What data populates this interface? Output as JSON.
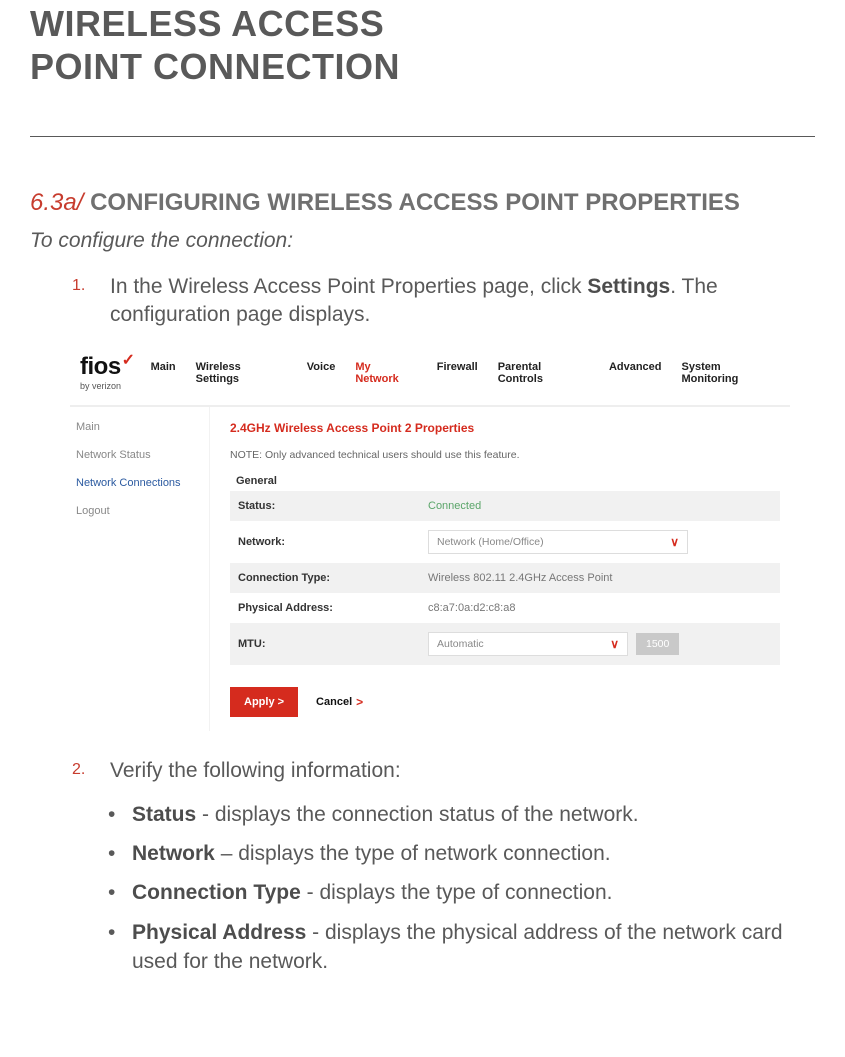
{
  "page": {
    "title_line1": "WIRELESS ACCESS",
    "title_line2": "POINT CONNECTION"
  },
  "section": {
    "number": "6.3a/",
    "heading": "CONFIGURING WIRELESS ACCESS POINT PROPERTIES",
    "intro": "To configure the connection:"
  },
  "steps": {
    "s1_num": "1.",
    "s1_a": "In the Wireless Access Point Properties page, click ",
    "s1_b": "Settings",
    "s1_c": ". The configuration page displays.",
    "s2_num": "2.",
    "s2": "Verify the following information:"
  },
  "bullets": {
    "b1_bold": "Status",
    "b1_rest": " - displays the connection status of the network.",
    "b2_bold": "Network",
    "b2_rest": " – displays the type of network connection.",
    "b3_bold": "Connection Type",
    "b3_rest": " - displays the type of connection.",
    "b4_bold": "Physical Address",
    "b4_rest": " - displays the physical address of the network card used for the network."
  },
  "screenshot": {
    "logo_text": "fios",
    "logo_sub": "by verizon",
    "nav": {
      "n1": "Main",
      "n2": "Wireless Settings",
      "n3": "Voice",
      "n4": "My Network",
      "n5": "Firewall",
      "n6": "Parental Controls",
      "n7": "Advanced",
      "n8": "System Monitoring"
    },
    "side": {
      "s1": "Main",
      "s2": "Network Status",
      "s3": "Network Connections",
      "s4": "Logout"
    },
    "panel_title": "2.4GHz Wireless Access Point 2 Properties",
    "panel_note": "NOTE: Only advanced technical users should use this feature.",
    "general": "General",
    "rows": {
      "status_label": "Status:",
      "status_value": "Connected",
      "network_label": "Network:",
      "network_value": "Network (Home/Office)",
      "conntype_label": "Connection Type:",
      "conntype_value": "Wireless 802.11 2.4GHz Access Point",
      "phys_label": "Physical Address:",
      "phys_value": "c8:a7:0a:d2:c8:a8",
      "mtu_label": "MTU:",
      "mtu_select": "Automatic",
      "mtu_value": "1500"
    },
    "apply": "Apply",
    "cancel": "Cancel",
    "colors": {
      "accent_red": "#d52b1e",
      "link_blue": "#2b5aa0",
      "connected_green": "#5aa569",
      "shade_bg": "#f1f1f1"
    }
  }
}
